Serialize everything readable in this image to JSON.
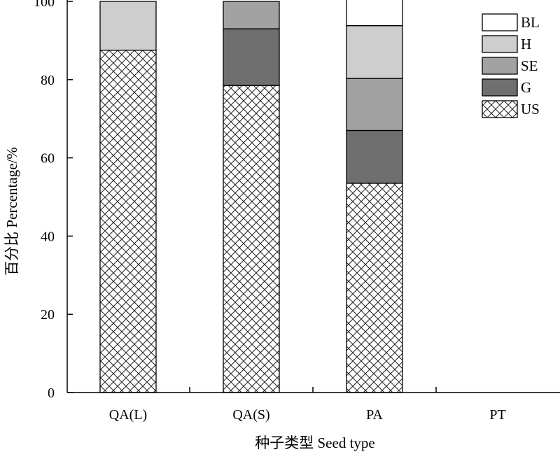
{
  "chart_data": {
    "type": "bar",
    "stacked": true,
    "title": "",
    "xlabel": "种子类型 Seed type",
    "ylabel": "百分比 Percentage/%",
    "ylim": [
      0,
      100
    ],
    "yticks": [
      0,
      20,
      40,
      60,
      80,
      100
    ],
    "categories": [
      "QA(L)",
      "QA(S)",
      "PA",
      "PT"
    ],
    "series": [
      {
        "name": "US",
        "values": [
          87.5,
          78.5,
          53.5,
          0
        ],
        "fill": "crosshatch"
      },
      {
        "name": "G",
        "values": [
          0,
          14.5,
          13.5,
          0
        ],
        "fill": "#6f6f6f"
      },
      {
        "name": "SE",
        "values": [
          0,
          7.0,
          13.3,
          0
        ],
        "fill": "#a2a2a2"
      },
      {
        "name": "H",
        "values": [
          12.5,
          0,
          13.5,
          0
        ],
        "fill": "#cecece"
      },
      {
        "name": "BL",
        "values": [
          0,
          0,
          6.7,
          0
        ],
        "fill": "#ffffff"
      }
    ],
    "legend_position": "top-right",
    "legend_order": [
      "BL",
      "H",
      "SE",
      "G",
      "US"
    ],
    "grid": false
  }
}
